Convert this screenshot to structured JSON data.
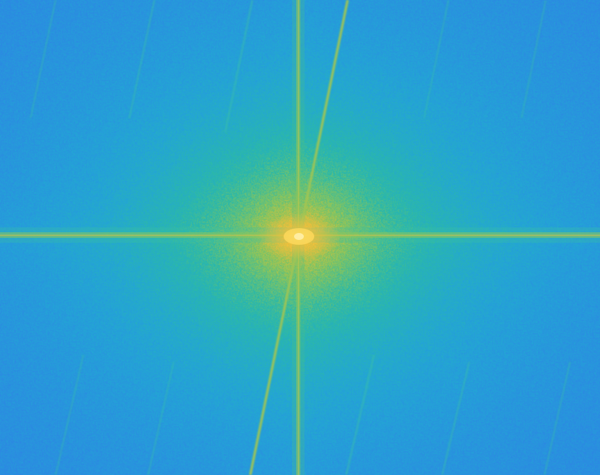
{
  "image": {
    "kind": "fft-magnitude-spectrum",
    "colormap": "parula",
    "colors": {
      "low": "#2f7fe6",
      "mid_low": "#23a5d6",
      "mid": "#2bb9a8",
      "mid_high": "#8cc55a",
      "high": "#f0be3a",
      "peak": "#ffd95c"
    }
  }
}
